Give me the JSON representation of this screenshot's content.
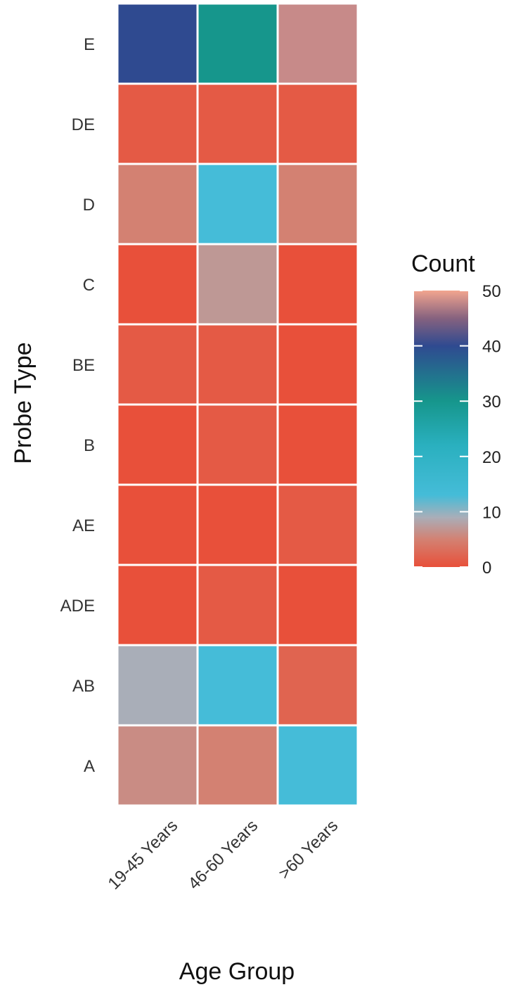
{
  "chart_data": {
    "type": "heatmap",
    "title": "",
    "xlabel": "Age Group",
    "ylabel": "Probe Type",
    "x_categories": [
      "19-45 Years",
      "46-60 Years",
      ">60 Years"
    ],
    "y_categories": [
      "E",
      "DE",
      "D",
      "C",
      "BE",
      "B",
      "AE",
      "ADE",
      "AB",
      "A"
    ],
    "values": [
      [
        40,
        30,
        48
      ],
      [
        1,
        1,
        1
      ],
      [
        5,
        13,
        5
      ],
      [
        0,
        7,
        0
      ],
      [
        1,
        1,
        0
      ],
      [
        0,
        1,
        0
      ],
      [
        0,
        0,
        1
      ],
      [
        0,
        1,
        0
      ],
      [
        9,
        13,
        2
      ],
      [
        6,
        5,
        13
      ]
    ],
    "legend": {
      "title": "Count",
      "min": 0,
      "max": 50,
      "ticks": [
        0,
        10,
        20,
        30,
        40,
        50
      ],
      "placement": "right"
    },
    "color_stops": [
      {
        "value": 0,
        "color": "#e8503a"
      },
      {
        "value": 5,
        "color": "#d38172"
      },
      {
        "value": 9,
        "color": "#a9aeb8"
      },
      {
        "value": 13,
        "color": "#45bcd8"
      },
      {
        "value": 22,
        "color": "#2ab0bf"
      },
      {
        "value": 30,
        "color": "#16968c"
      },
      {
        "value": 40,
        "color": "#2f4a90"
      },
      {
        "value": 45,
        "color": "#86627f"
      },
      {
        "value": 50,
        "color": "#f2a58f"
      }
    ],
    "grid": false
  }
}
